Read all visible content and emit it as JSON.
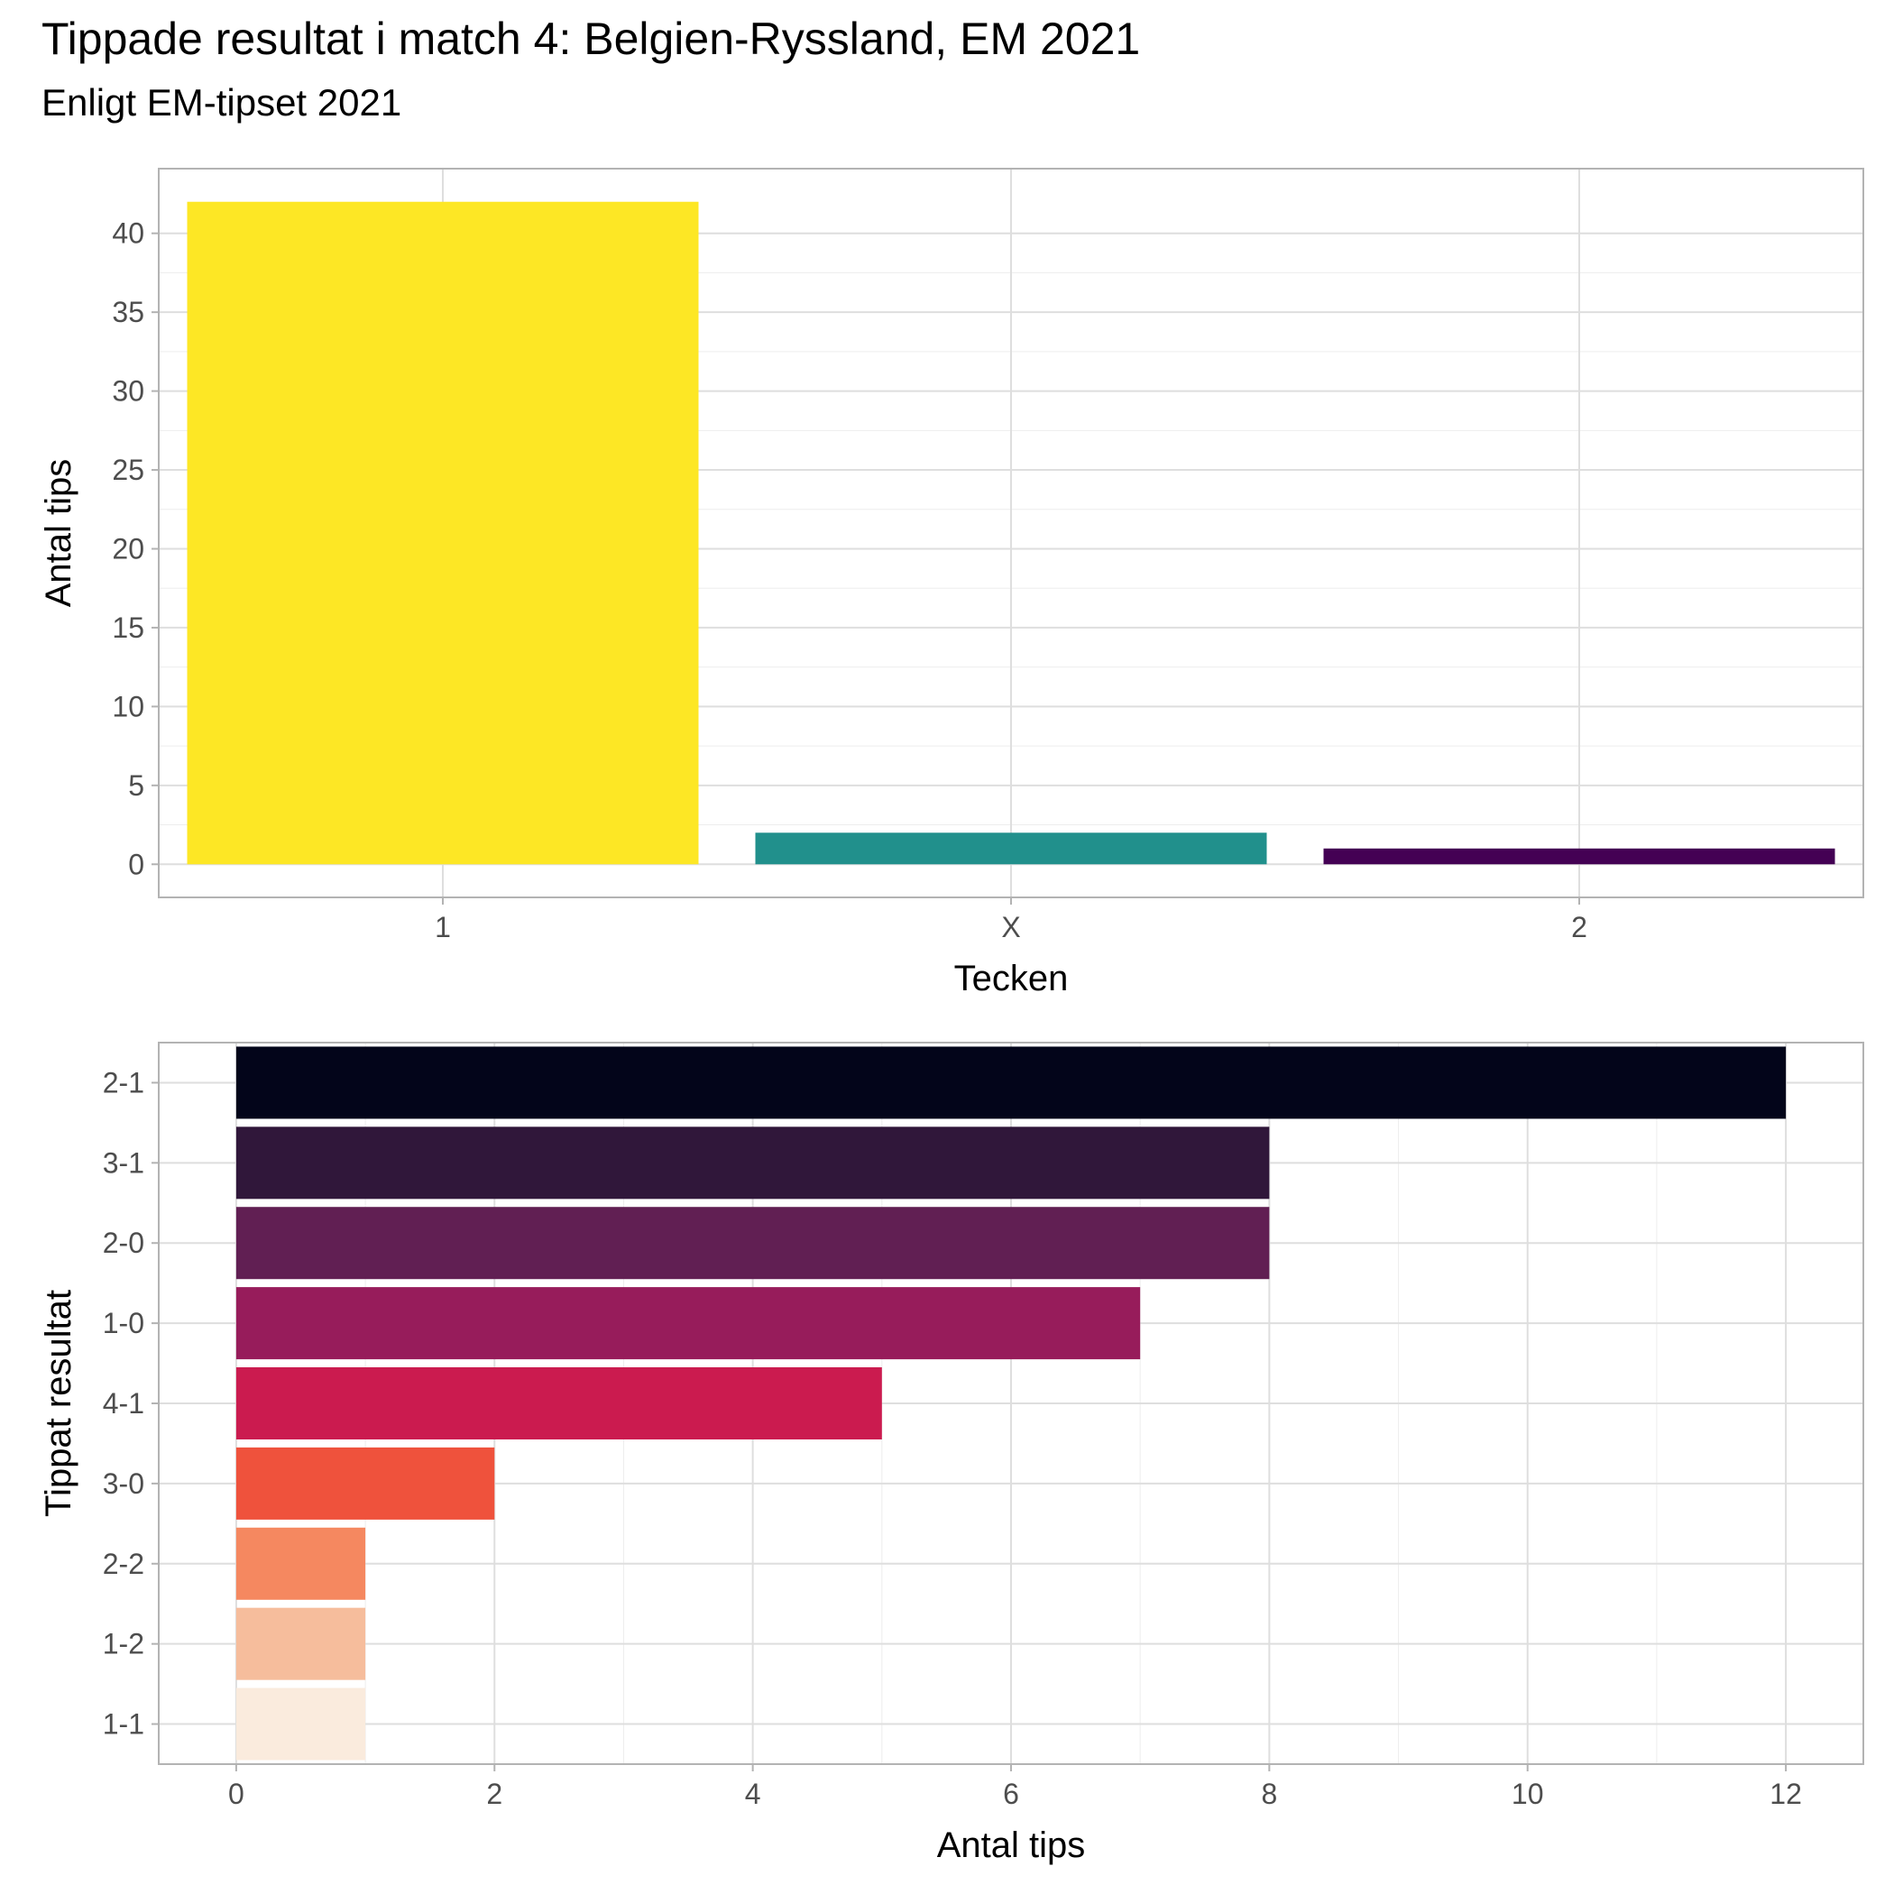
{
  "title": "Tippade resultat i match 4: Belgien-Ryssland, EM 2021",
  "subtitle": "Enligt EM-tipset 2021",
  "chart_data": [
    {
      "type": "bar",
      "orientation": "vertical",
      "xlabel": "Tecken",
      "ylabel": "Antal tips",
      "categories": [
        "1",
        "X",
        "2"
      ],
      "values": [
        42,
        2,
        1
      ],
      "colors": [
        "#FDE725",
        "#21908C",
        "#440154"
      ],
      "ylim": [
        -2.1,
        44.1
      ],
      "yticks": [
        0,
        5,
        10,
        15,
        20,
        25,
        30,
        35,
        40
      ],
      "grid": true,
      "legend": "none"
    },
    {
      "type": "bar",
      "orientation": "horizontal",
      "xlabel": "Antal tips",
      "ylabel": "Tippat resultat",
      "categories": [
        "2-1",
        "3-1",
        "2-0",
        "1-0",
        "4-1",
        "3-0",
        "2-2",
        "1-2",
        "1-1"
      ],
      "values": [
        12,
        8,
        8,
        7,
        5,
        2,
        1,
        1,
        1
      ],
      "colors": [
        "#03051A",
        "#30173A",
        "#611F53",
        "#971C5B",
        "#CB1B4F",
        "#EF523C",
        "#F58860",
        "#F6BD9C",
        "#FAEBDD"
      ],
      "xlim": [
        -0.6,
        12.6
      ],
      "xticks": [
        0,
        2,
        4,
        6,
        8,
        10,
        12
      ],
      "grid": true,
      "legend": "none"
    }
  ]
}
